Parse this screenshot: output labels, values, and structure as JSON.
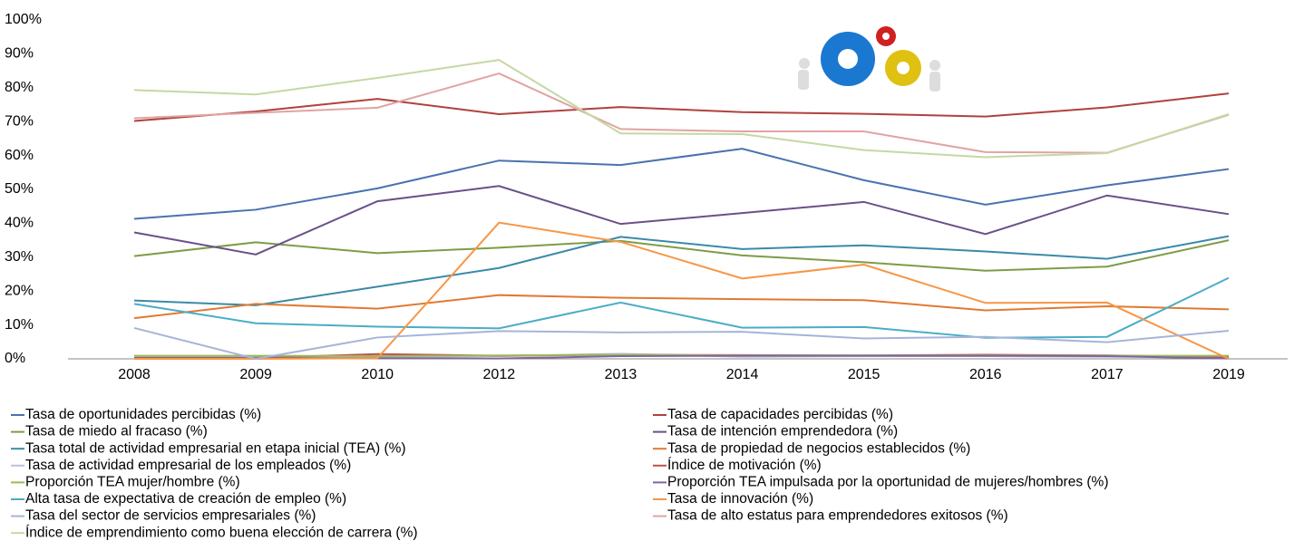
{
  "chart_data": {
    "type": "line",
    "categories": [
      "2008",
      "2009",
      "2010",
      "2012",
      "2013",
      "2014",
      "2015",
      "2016",
      "2017",
      "2019"
    ],
    "ylim": [
      0,
      100
    ],
    "yticks": [
      {
        "value": 0,
        "label": "0%"
      },
      {
        "value": 10,
        "label": "10%"
      },
      {
        "value": 20,
        "label": "20%"
      },
      {
        "value": 30,
        "label": "30%"
      },
      {
        "value": 40,
        "label": "40%"
      },
      {
        "value": 50,
        "label": "50%"
      },
      {
        "value": 60,
        "label": "60%"
      },
      {
        "value": 70,
        "label": "70%"
      },
      {
        "value": 80,
        "label": "80%"
      },
      {
        "value": 90,
        "label": "90%"
      },
      {
        "value": 100,
        "label": "100%"
      }
    ],
    "grid": false,
    "legend": "bottom",
    "series": [
      {
        "name": "Tasa de oportunidades percibidas (%)",
        "color": "#4a72b0",
        "values": [
          41.3,
          44,
          50.3,
          58.5,
          57.2,
          62,
          52.7,
          45.5,
          51.2,
          56
        ]
      },
      {
        "name": "Tasa de capacidades percibidas (%)",
        "color": "#b0413e",
        "values": [
          70.2,
          73,
          76.7,
          72.2,
          74.3,
          72.8,
          72.3,
          71.5,
          74.2,
          78.3
        ]
      },
      {
        "name": "Tasa de miedo al fracaso (%)",
        "color": "#7e9c45",
        "values": [
          30.3,
          34.4,
          31.2,
          32.8,
          34.8,
          30.5,
          28.5,
          26,
          27.2,
          35
        ]
      },
      {
        "name": "Tasa de intención emprendedora (%)",
        "color": "#6a5088",
        "values": [
          37.3,
          30.8,
          46.5,
          51,
          39.8,
          43,
          46.3,
          36.8,
          48.2,
          42.7
        ]
      },
      {
        "name": "Tasa total de actividad empresarial en etapa inicial (TEA) (%)",
        "color": "#3a8aa8",
        "values": [
          17.2,
          15.8,
          21.3,
          26.8,
          36,
          32.4,
          33.5,
          31.7,
          29.5,
          36.2
        ]
      },
      {
        "name": "Tasa de propiedad de negocios establecidos (%)",
        "color": "#df7a33",
        "values": [
          12,
          16.2,
          14.8,
          18.8,
          18,
          17.6,
          17.3,
          14.3,
          15.5,
          14.6
        ]
      },
      {
        "name": "Tasa de actividad empresarial de los empleados (%)",
        "color": "#b8c4d8",
        "values": [
          0.5,
          0.5,
          0.5,
          0.8,
          1.5,
          0.6,
          0.8,
          0.8,
          0.6,
          0.7
        ]
      },
      {
        "name": "Índice de motivación (%)",
        "color": "#c0504d",
        "values": [
          0.3,
          0.3,
          1.4,
          0.9,
          1.2,
          1.1,
          1,
          1.2,
          1,
          0.5
        ]
      },
      {
        "name": "Proporción TEA mujer/hombre (%)",
        "color": "#9bbb59",
        "values": [
          0.9,
          0.9,
          0.8,
          1,
          1.2,
          1,
          1,
          1,
          0.9,
          0.9
        ]
      },
      {
        "name": "Proporción TEA impulsada por la oportunidad de mujeres/hombres (%)",
        "color": "#8064a2",
        "values": [
          0.2,
          0.2,
          0.2,
          0.1,
          0.8,
          0.9,
          0.9,
          0.9,
          0.8,
          0.1
        ]
      },
      {
        "name": "Alta tasa de expectativa de creación de empleo (%)",
        "color": "#4bacc6",
        "values": [
          16.2,
          10.5,
          9.5,
          9,
          16.6,
          9.2,
          9.4,
          6.2,
          6.5,
          23.9
        ]
      },
      {
        "name": "Tasa de innovación (%)",
        "color": "#f79646",
        "values": [
          0,
          0,
          0.2,
          40.2,
          34.5,
          23.7,
          27.8,
          16.5,
          16.6,
          0
        ]
      },
      {
        "name": "Tasa del sector de servicios empresariales (%)",
        "color": "#a5b5d8",
        "values": [
          9.1,
          0,
          6.3,
          8.2,
          7.8,
          8,
          6,
          6.5,
          4.9,
          8.3
        ]
      },
      {
        "name": "Tasa de alto estatus para emprendedores exitosos (%)",
        "color": "#e0a4a2",
        "values": [
          71,
          72.6,
          74.1,
          84.2,
          67.8,
          67.1,
          67.1,
          61,
          60.8,
          72
        ]
      },
      {
        "name": "Índice de emprendimiento como buena elección de carrera (%)",
        "color": "#c4d8a4",
        "values": [
          79.3,
          78,
          82.9,
          88.2,
          66.5,
          66.3,
          61.6,
          59.5,
          60.7,
          72.2
        ]
      }
    ]
  }
}
